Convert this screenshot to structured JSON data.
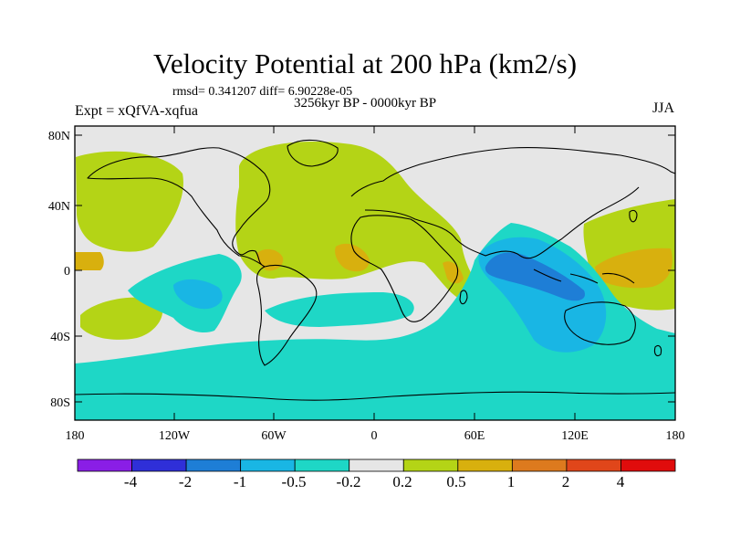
{
  "title": "Velocity Potential at 200 hPa (km2/s)",
  "stats": "rmsd= 0.341207 diff= 6.90228e-05",
  "left_string": "Expt = xQfVA-xqfua",
  "center_string": "3256kyr BP - 0000kyr BP",
  "right_string": "JJA",
  "lat_labels": [
    "80N",
    "40N",
    "0",
    "40S",
    "80S"
  ],
  "lon_labels": [
    "180",
    "120W",
    "60W",
    "0",
    "60E",
    "120E",
    "180"
  ],
  "colorbar": {
    "labels": [
      "-4",
      "-2",
      "-1",
      "-0.5",
      "-0.2",
      "0.2",
      "0.5",
      "1",
      "2",
      "4"
    ],
    "colors": [
      "#8a1ee6",
      "#2f2fd8",
      "#1e7ed6",
      "#19b6e4",
      "#1ed7c6",
      "#e6e6e6",
      "#b4d416",
      "#d8b00e",
      "#dd7a1e",
      "#e0461a",
      "#e00c0c"
    ]
  },
  "colors": {
    "background": "#e6e6e6",
    "pos1": "#b4d416",
    "pos2": "#d8b00e",
    "neg1": "#1ed7c6",
    "neg2": "#19b6e4",
    "neg3": "#1e7ed6"
  }
}
